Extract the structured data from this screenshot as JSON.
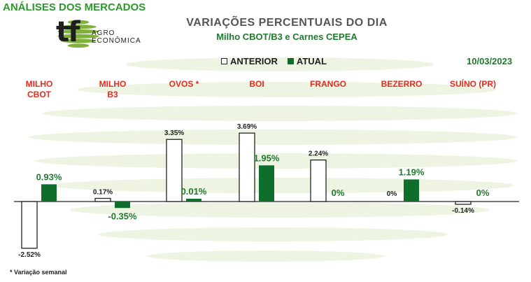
{
  "header": {
    "title": "ANÁLISES DOS MERCADOS"
  },
  "logo": {
    "mark": "tf",
    "line1": "AGRO",
    "line2": "ECONÔMICA"
  },
  "footnote": "* Variação semanal",
  "colors": {
    "anterior_fill": "#ffffff",
    "anterior_stroke": "#222222",
    "atual_fill": "#0f6e2c",
    "category_text": "#e8291c",
    "title_green": "#1f7a2e",
    "watermark": "#eef4e2"
  },
  "chart_data": {
    "type": "bar",
    "title": "VARIAÇÕES PERCENTUAIS DO DIA",
    "subtitle": "Milho CBOT/B3 e Carnes CEPEA",
    "date": "10/03/2023",
    "legend": {
      "anterior": "ANTERIOR",
      "atual": "ATUAL",
      "placement": "top-center"
    },
    "categories": [
      "MILHO\nCBOT",
      "MILHO\nB3",
      "OVOS *",
      "BOI",
      "FRANGO",
      "BEZERRO",
      "SUÍNO (PR)"
    ],
    "series": [
      {
        "name": "ANTERIOR",
        "values": [
          -2.52,
          0.17,
          3.35,
          3.69,
          2.24,
          0,
          -0.14
        ],
        "labels": [
          "-2.52%",
          "0.17%",
          "3.35%",
          "3.69%",
          "2.24%",
          "0%",
          "-0.14%"
        ]
      },
      {
        "name": "ATUAL",
        "values": [
          0.93,
          -0.35,
          0.01,
          1.95,
          0,
          1.19,
          0
        ],
        "labels": [
          "0.93%",
          "-0.35%",
          "0.01%",
          "1.95%",
          "0%",
          "1.19%",
          "0%"
        ]
      }
    ],
    "unit": "%",
    "grid": false
  }
}
